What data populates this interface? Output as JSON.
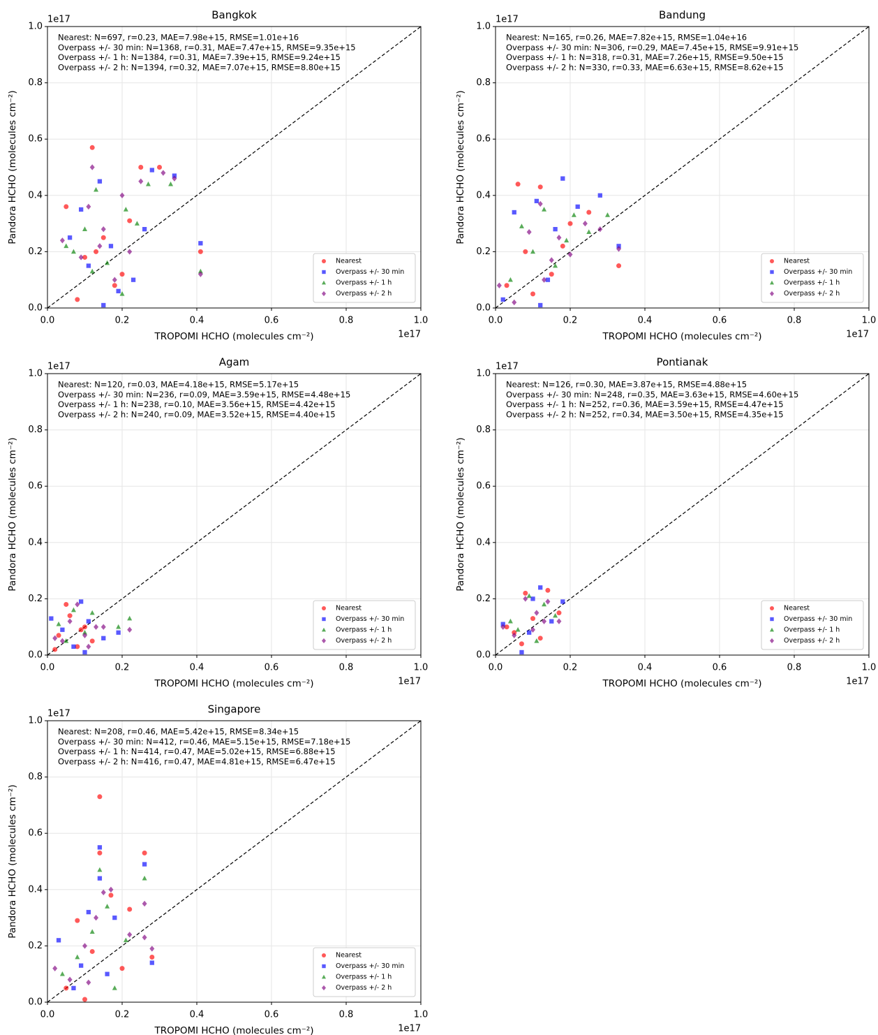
{
  "chart_data": [
    {
      "type": "scatter",
      "title": "Bangkok",
      "annotations": [
        "Nearest: N=697, r=0.23, MAE=7.98e+15, RMSE=1.01e+16",
        "Overpass +/- 30 min: N=1368, r=0.31, MAE=7.47e+15, RMSE=9.35e+15",
        "Overpass +/- 1 h: N=1384, r=0.31, MAE=7.39e+15, RMSE=9.24e+15",
        "Overpass +/- 2 h: N=1394, r=0.32, MAE=7.07e+15, RMSE=8.80e+15"
      ],
      "xlabel": "TROPOMI HCHO (molecules cm⁻²)",
      "ylabel": "Pandora HCHO (molecules cm⁻²)",
      "x_offset_label": "1e17",
      "y_offset_label": "1e17",
      "xlim": [
        0,
        1
      ],
      "ylim": [
        0,
        1
      ],
      "xticks": [
        {
          "value": 0,
          "label": "0.0"
        },
        0.2,
        0.4,
        0.6,
        0.8,
        {
          "value": 1,
          "label": "1.0"
        }
      ],
      "yticks": [
        {
          "value": 0,
          "label": "0.0"
        },
        0.2,
        0.4,
        0.6,
        0.8,
        {
          "value": 1,
          "label": "1.0"
        }
      ],
      "grid": true,
      "legend": "lower right",
      "series": [
        {
          "name": "Nearest",
          "color": "#ff0000",
          "marker": "o",
          "x": [
            0.12,
            0.05,
            0.1,
            0.15,
            0.2,
            0.25,
            0.3,
            0.18,
            0.08,
            0.22,
            0.13,
            0.41
          ],
          "y": [
            0.57,
            0.36,
            0.18,
            0.25,
            0.12,
            0.5,
            0.5,
            0.08,
            0.03,
            0.31,
            0.2,
            0.2
          ]
        },
        {
          "name": "Overpass +/- 30 min",
          "color": "#0000ff",
          "marker": "s",
          "x": [
            0.14,
            0.06,
            0.11,
            0.17,
            0.23,
            0.28,
            0.34,
            0.09,
            0.19,
            0.41,
            0.15,
            0.26
          ],
          "y": [
            0.45,
            0.25,
            0.15,
            0.22,
            0.1,
            0.49,
            0.47,
            0.35,
            0.06,
            0.23,
            0.01,
            0.28
          ]
        },
        {
          "name": "Overpass +/- 1 h",
          "color": "#008000",
          "marker": "^",
          "x": [
            0.13,
            0.07,
            0.1,
            0.16,
            0.21,
            0.27,
            0.33,
            0.2,
            0.12,
            0.41,
            0.05,
            0.24
          ],
          "y": [
            0.42,
            0.2,
            0.28,
            0.16,
            0.35,
            0.44,
            0.44,
            0.05,
            0.13,
            0.13,
            0.22,
            0.3
          ]
        },
        {
          "name": "Overpass +/- 2 h",
          "color": "#800080",
          "marker": "D",
          "x": [
            0.12,
            0.04,
            0.09,
            0.15,
            0.2,
            0.25,
            0.31,
            0.34,
            0.41,
            0.18,
            0.11,
            0.22,
            0.14
          ],
          "y": [
            0.5,
            0.24,
            0.18,
            0.28,
            0.4,
            0.45,
            0.48,
            0.46,
            0.12,
            0.1,
            0.36,
            0.2,
            0.22
          ]
        }
      ]
    },
    {
      "type": "scatter",
      "title": "Bandung",
      "annotations": [
        "Nearest: N=165, r=0.26, MAE=7.82e+15, RMSE=1.04e+16",
        "Overpass +/- 30 min: N=306, r=0.29, MAE=7.45e+15, RMSE=9.91e+15",
        "Overpass +/- 1 h: N=318, r=0.31, MAE=7.26e+15, RMSE=9.50e+15",
        "Overpass +/- 2 h: N=330, r=0.33, MAE=6.63e+15, RMSE=8.62e+15"
      ],
      "xlabel": "TROPOMI HCHO (molecules cm⁻²)",
      "ylabel": "Pandora HCHO (molecules cm⁻²)",
      "x_offset_label": "1e17",
      "y_offset_label": "1e17",
      "xlim": [
        0,
        1
      ],
      "ylim": [
        0,
        1
      ],
      "xticks": [
        {
          "value": 0,
          "label": "0.0"
        },
        0.2,
        0.4,
        0.6,
        0.8,
        {
          "value": 1,
          "label": "1.0"
        }
      ],
      "yticks": [
        {
          "value": 0,
          "label": "0.0"
        },
        0.2,
        0.4,
        0.6,
        0.8,
        {
          "value": 1,
          "label": "1.0"
        }
      ],
      "grid": true,
      "legend": "lower right",
      "series": [
        {
          "name": "Nearest",
          "color": "#ff0000",
          "marker": "o",
          "x": [
            0.06,
            0.12,
            0.08,
            0.15,
            0.2,
            0.25,
            0.33,
            0.03,
            0.1,
            0.18
          ],
          "y": [
            0.44,
            0.43,
            0.2,
            0.12,
            0.3,
            0.34,
            0.15,
            0.08,
            0.05,
            0.22
          ]
        },
        {
          "name": "Overpass +/- 30 min",
          "color": "#0000ff",
          "marker": "s",
          "x": [
            0.18,
            0.05,
            0.11,
            0.14,
            0.22,
            0.28,
            0.33,
            0.02,
            0.12,
            0.16
          ],
          "y": [
            0.46,
            0.34,
            0.38,
            0.1,
            0.36,
            0.4,
            0.22,
            0.03,
            0.01,
            0.28
          ]
        },
        {
          "name": "Overpass +/- 1 h",
          "color": "#008000",
          "marker": "^",
          "x": [
            0.07,
            0.13,
            0.16,
            0.21,
            0.25,
            0.3,
            0.04,
            0.1,
            0.19
          ],
          "y": [
            0.29,
            0.35,
            0.15,
            0.33,
            0.27,
            0.33,
            0.1,
            0.2,
            0.24
          ]
        },
        {
          "name": "Overpass +/- 2 h",
          "color": "#800080",
          "marker": "D",
          "x": [
            0.05,
            0.09,
            0.12,
            0.15,
            0.2,
            0.24,
            0.28,
            0.33,
            0.01,
            0.13,
            0.17
          ],
          "y": [
            0.02,
            0.27,
            0.37,
            0.17,
            0.19,
            0.3,
            0.28,
            0.21,
            0.08,
            0.1,
            0.25
          ]
        }
      ]
    },
    {
      "type": "scatter",
      "title": "Agam",
      "annotations": [
        "Nearest: N=120, r=0.03, MAE=4.18e+15, RMSE=5.17e+15",
        "Overpass +/- 30 min: N=236, r=0.09, MAE=3.59e+15, RMSE=4.48e+15",
        "Overpass +/- 1 h: N=238, r=0.10, MAE=3.56e+15, RMSE=4.42e+15",
        "Overpass +/- 2 h: N=240, r=0.09, MAE=3.52e+15, RMSE=4.40e+15"
      ],
      "xlabel": "TROPOMI HCHO (molecules cm⁻²)",
      "ylabel": "Pandora HCHO (molecules cm⁻²)",
      "x_offset_label": "1e17",
      "y_offset_label": "1e17",
      "xlim": [
        0,
        1
      ],
      "ylim": [
        0,
        1
      ],
      "xticks": [
        {
          "value": 0,
          "label": "0.0"
        },
        0.2,
        0.4,
        0.6,
        0.8,
        {
          "value": 1,
          "label": "1.0"
        }
      ],
      "yticks": [
        {
          "value": 0,
          "label": "0.0"
        },
        0.2,
        0.4,
        0.6,
        0.8,
        {
          "value": 1,
          "label": "1.0"
        }
      ],
      "grid": true,
      "legend": "lower right",
      "series": [
        {
          "name": "Nearest",
          "color": "#ff0000",
          "marker": "o",
          "x": [
            0.05,
            0.08,
            0.03,
            0.1,
            0.12,
            0.06,
            0.02,
            0.09
          ],
          "y": [
            0.18,
            0.03,
            0.07,
            0.1,
            0.05,
            0.14,
            0.02,
            0.09
          ]
        },
        {
          "name": "Overpass +/- 30 min",
          "color": "#0000ff",
          "marker": "s",
          "x": [
            0.09,
            0.04,
            0.07,
            0.11,
            0.15,
            0.19,
            0.01,
            0.1
          ],
          "y": [
            0.19,
            0.09,
            0.03,
            0.12,
            0.06,
            0.08,
            0.13,
            0.01
          ]
        },
        {
          "name": "Overpass +/- 1 h",
          "color": "#008000",
          "marker": "^",
          "x": [
            0.07,
            0.12,
            0.05,
            0.19,
            0.22,
            0.1,
            0.03
          ],
          "y": [
            0.16,
            0.15,
            0.05,
            0.1,
            0.13,
            0.08,
            0.11
          ]
        },
        {
          "name": "Overpass +/- 2 h",
          "color": "#800080",
          "marker": "D",
          "x": [
            0.08,
            0.06,
            0.1,
            0.13,
            0.15,
            0.22,
            0.04,
            0.02,
            0.11
          ],
          "y": [
            0.18,
            0.12,
            0.07,
            0.1,
            0.1,
            0.09,
            0.05,
            0.06,
            0.03
          ]
        }
      ]
    },
    {
      "type": "scatter",
      "title": "Pontianak",
      "annotations": [
        "Nearest: N=126, r=0.30, MAE=3.87e+15, RMSE=4.88e+15",
        "Overpass +/- 30 min: N=248, r=0.35, MAE=3.63e+15, RMSE=4.60e+15",
        "Overpass +/- 1 h: N=252, r=0.36, MAE=3.59e+15, RMSE=4.47e+15",
        "Overpass +/- 2 h: N=252, r=0.34, MAE=3.50e+15, RMSE=4.35e+15"
      ],
      "xlabel": "TROPOMI HCHO (molecules cm⁻²)",
      "ylabel": "Pandora HCHO (molecules cm⁻²)",
      "x_offset_label": "1e17",
      "y_offset_label": "1e17",
      "xlim": [
        0,
        1
      ],
      "ylim": [
        0,
        1
      ],
      "xticks": [
        {
          "value": 0,
          "label": "0.0"
        },
        0.2,
        0.4,
        0.6,
        0.8,
        {
          "value": 1,
          "label": "1.0"
        }
      ],
      "yticks": [
        {
          "value": 0,
          "label": "0.0"
        },
        0.2,
        0.4,
        0.6,
        0.8,
        {
          "value": 1,
          "label": "1.0"
        }
      ],
      "grid": true,
      "legend": "lower right",
      "series": [
        {
          "name": "Nearest",
          "color": "#ff0000",
          "marker": "o",
          "x": [
            0.08,
            0.14,
            0.05,
            0.1,
            0.17,
            0.07,
            0.12,
            0.03
          ],
          "y": [
            0.22,
            0.23,
            0.08,
            0.13,
            0.15,
            0.04,
            0.06,
            0.1
          ]
        },
        {
          "name": "Overpass +/- 30 min",
          "color": "#0000ff",
          "marker": "s",
          "x": [
            0.12,
            0.18,
            0.07,
            0.1,
            0.15,
            0.02,
            0.09
          ],
          "y": [
            0.24,
            0.19,
            0.01,
            0.2,
            0.12,
            0.11,
            0.08
          ]
        },
        {
          "name": "Overpass +/- 1 h",
          "color": "#008000",
          "marker": "^",
          "x": [
            0.09,
            0.13,
            0.06,
            0.16,
            0.11,
            0.04
          ],
          "y": [
            0.21,
            0.18,
            0.09,
            0.14,
            0.05,
            0.12
          ]
        },
        {
          "name": "Overpass +/- 2 h",
          "color": "#800080",
          "marker": "D",
          "x": [
            0.08,
            0.11,
            0.14,
            0.17,
            0.05,
            0.02,
            0.1,
            0.13
          ],
          "y": [
            0.2,
            0.15,
            0.19,
            0.12,
            0.07,
            0.1,
            0.09,
            0.12
          ]
        }
      ]
    },
    {
      "type": "scatter",
      "title": "Singapore",
      "annotations": [
        "Nearest: N=208, r=0.46, MAE=5.42e+15, RMSE=8.34e+15",
        "Overpass +/- 30 min: N=412, r=0.46, MAE=5.15e+15, RMSE=7.18e+15",
        "Overpass +/- 1 h: N=414, r=0.47, MAE=5.02e+15, RMSE=6.88e+15",
        "Overpass +/- 2 h: N=416, r=0.47, MAE=4.81e+15, RMSE=6.47e+15"
      ],
      "xlabel": "TROPOMI HCHO (molecules cm⁻²)",
      "ylabel": "Pandora HCHO (molecules cm⁻²)",
      "x_offset_label": "1e17",
      "y_offset_label": "1e17",
      "xlim": [
        0,
        1
      ],
      "ylim": [
        0,
        1
      ],
      "xticks": [
        {
          "value": 0,
          "label": "0.0"
        },
        0.2,
        0.4,
        0.6,
        0.8,
        {
          "value": 1,
          "label": "1.0"
        }
      ],
      "yticks": [
        {
          "value": 0,
          "label": "0.0"
        },
        0.2,
        0.4,
        0.6,
        0.8,
        {
          "value": 1,
          "label": "1.0"
        }
      ],
      "grid": true,
      "legend": "lower right",
      "series": [
        {
          "name": "Nearest",
          "color": "#ff0000",
          "marker": "o",
          "x": [
            0.14,
            0.26,
            0.14,
            0.08,
            0.12,
            0.17,
            0.22,
            0.1,
            0.05,
            0.2,
            0.28
          ],
          "y": [
            0.73,
            0.53,
            0.53,
            0.29,
            0.18,
            0.38,
            0.33,
            0.01,
            0.05,
            0.12,
            0.16
          ]
        },
        {
          "name": "Overpass +/- 30 min",
          "color": "#0000ff",
          "marker": "s",
          "x": [
            0.14,
            0.14,
            0.26,
            0.11,
            0.18,
            0.09,
            0.03,
            0.16,
            0.28,
            0.07
          ],
          "y": [
            0.55,
            0.44,
            0.49,
            0.32,
            0.3,
            0.13,
            0.22,
            0.1,
            0.14,
            0.05
          ]
        },
        {
          "name": "Overpass +/- 1 h",
          "color": "#008000",
          "marker": "^",
          "x": [
            0.14,
            0.26,
            0.16,
            0.12,
            0.08,
            0.21,
            0.04,
            0.18
          ],
          "y": [
            0.47,
            0.44,
            0.34,
            0.25,
            0.16,
            0.22,
            0.1,
            0.05
          ]
        },
        {
          "name": "Overpass +/- 2 h",
          "color": "#800080",
          "marker": "D",
          "x": [
            0.15,
            0.26,
            0.17,
            0.13,
            0.1,
            0.06,
            0.22,
            0.26,
            0.28,
            0.02,
            0.11
          ],
          "y": [
            0.39,
            0.35,
            0.4,
            0.3,
            0.2,
            0.08,
            0.24,
            0.23,
            0.19,
            0.12,
            0.07
          ]
        }
      ]
    }
  ]
}
